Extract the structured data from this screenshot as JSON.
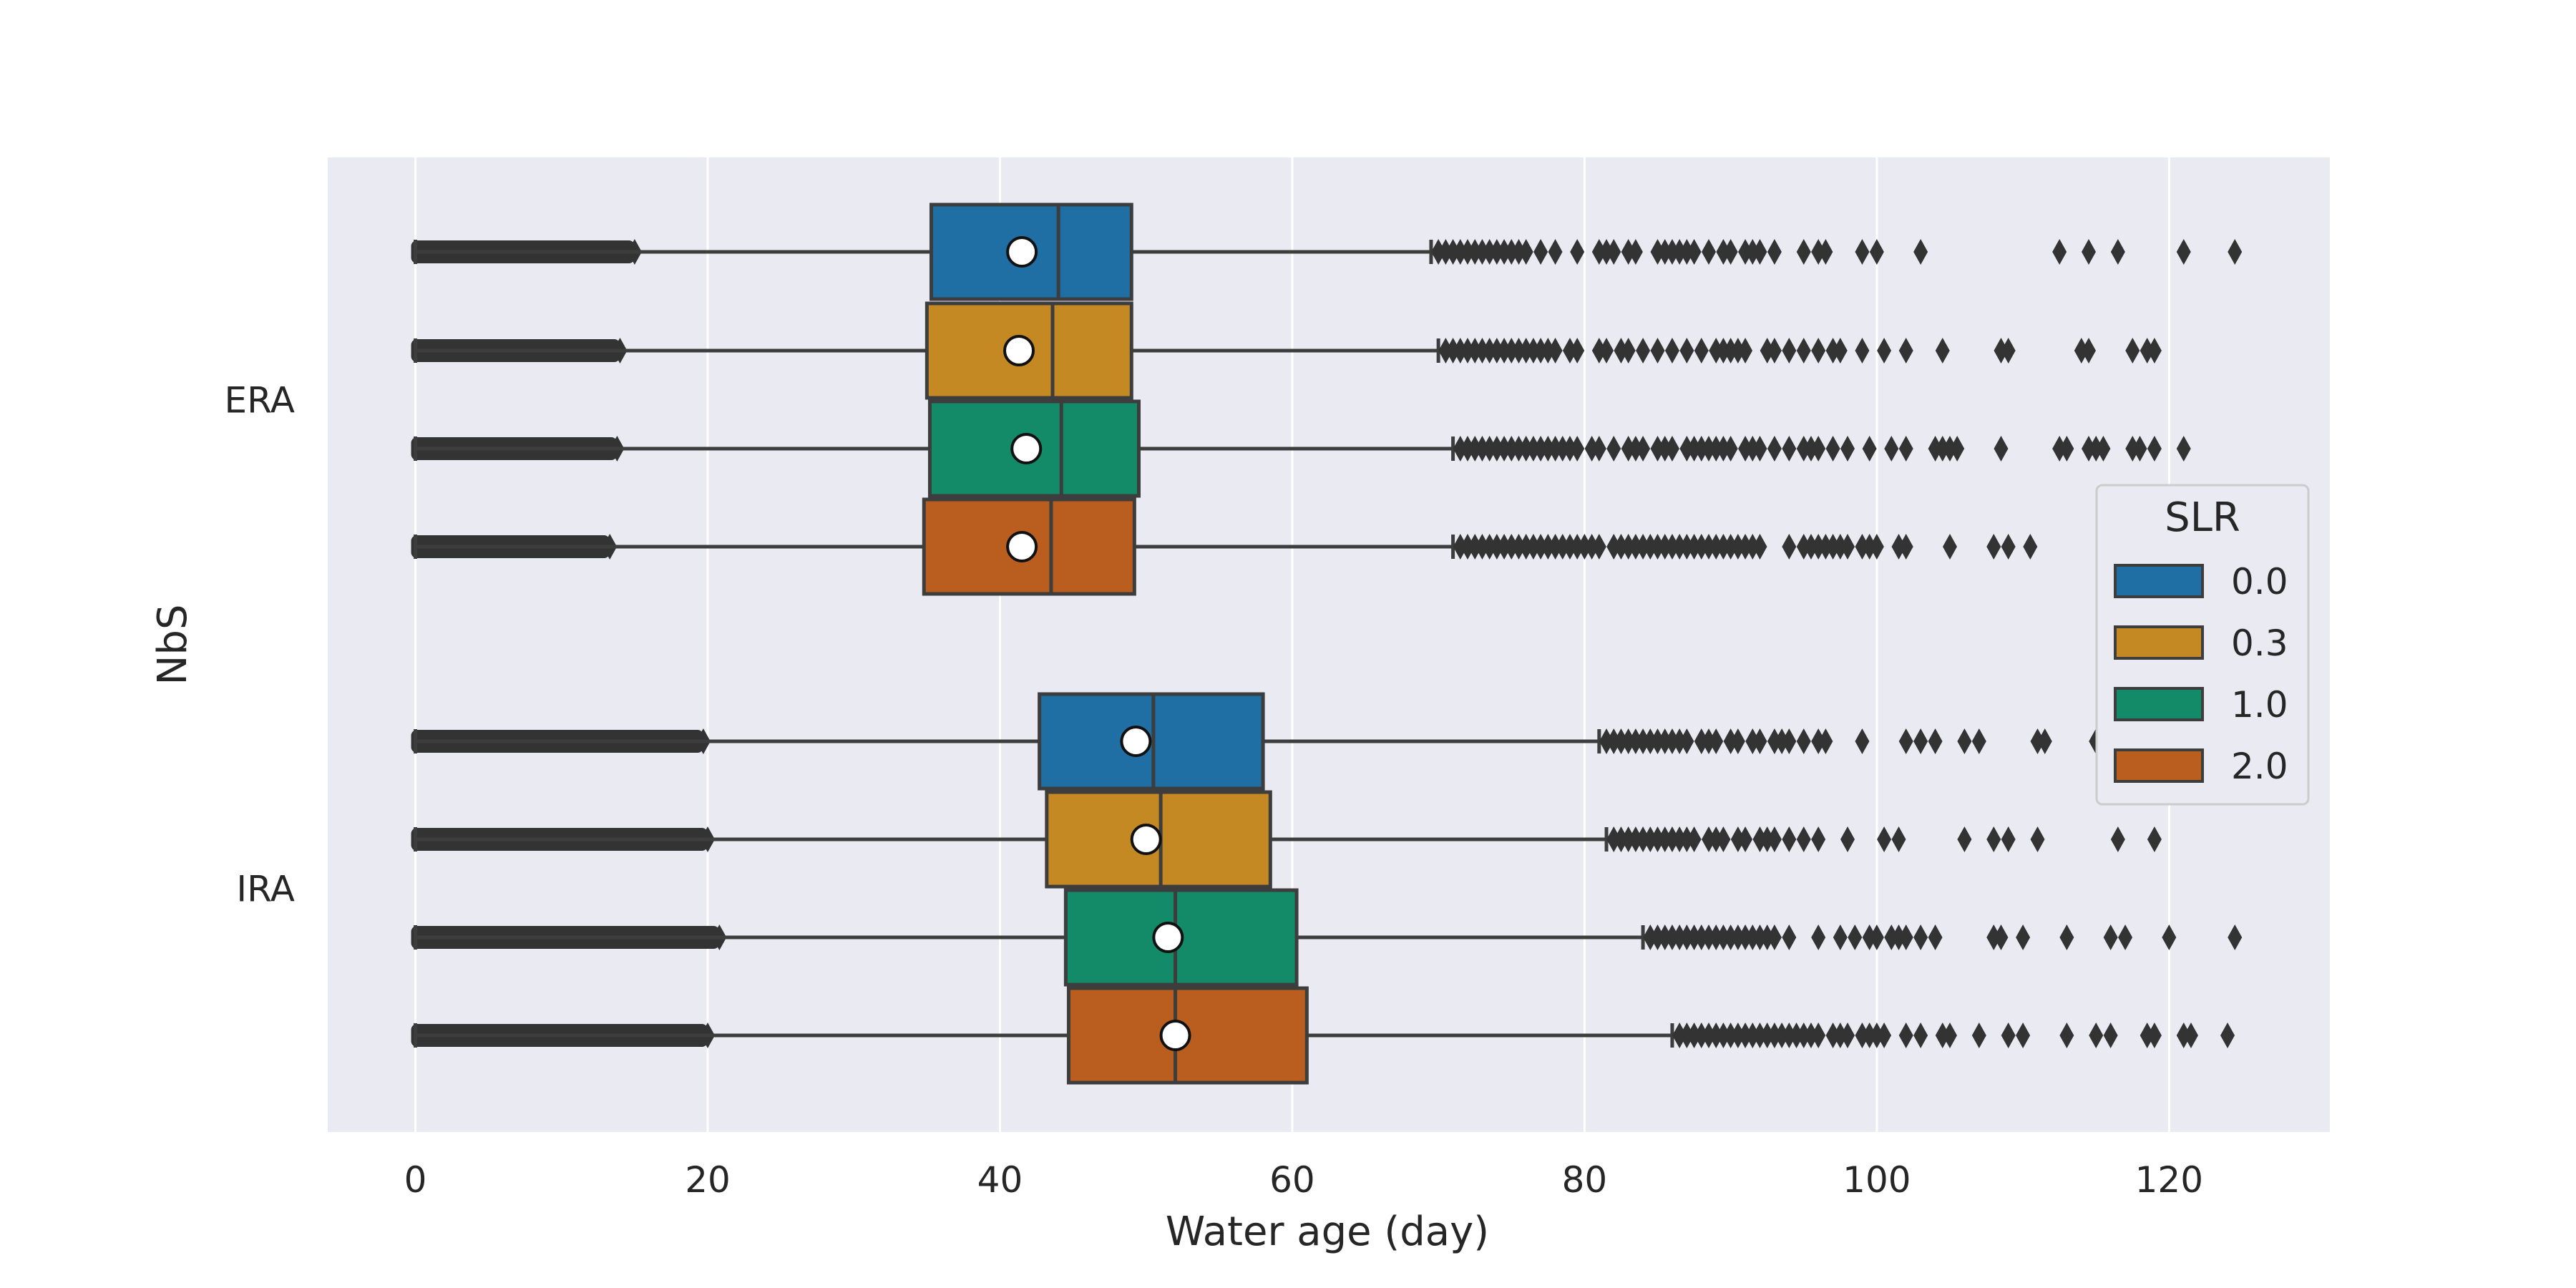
{
  "chart_data": {
    "type": "boxplot",
    "orientation": "horizontal",
    "title": "",
    "xlabel": "Water age (day)",
    "ylabel": "NbS",
    "xlim": [
      -6,
      131
    ],
    "xticks": [
      0,
      20,
      40,
      60,
      80,
      100,
      120
    ],
    "categories": [
      "ERA",
      "IRA"
    ],
    "grid": true,
    "legend": {
      "title": "SLR",
      "placement": "right",
      "entries": [
        "0.0",
        "0.3",
        "1.0",
        "2.0"
      ]
    },
    "colors": {
      "0.0": "#1f6fa5",
      "0.3": "#c48922",
      "1.0": "#138a68",
      "2.0": "#b95e1e"
    },
    "series": [
      {
        "name": "0.0",
        "boxes": [
          {
            "category": "ERA",
            "whisker_low": 0,
            "q1": 35.3,
            "median": 44,
            "q3": 49,
            "whisker_high": 69.5,
            "mean": 41.5,
            "flier_dense_range": [
              0,
              15
            ],
            "outliers": [
              70,
              70.5,
              71,
              71.5,
              72,
              72.5,
              73,
              73.5,
              74,
              74.5,
              75,
              75.5,
              76,
              77,
              78,
              79.5,
              81,
              81.5,
              82,
              83,
              83.5,
              85,
              85.5,
              86,
              86.5,
              87,
              87.5,
              88.5,
              89.5,
              90,
              91,
              91.5,
              92,
              93,
              95,
              96,
              96.5,
              99,
              100,
              103,
              112.5,
              114.5,
              116.5,
              121,
              124.5
            ]
          },
          {
            "category": "IRA",
            "whisker_low": 0,
            "q1": 42.7,
            "median": 50.5,
            "q3": 58,
            "whisker_high": 81,
            "mean": 49.3,
            "flier_dense_range": [
              0,
              19.7
            ],
            "outliers": [
              81.5,
              82,
              82.5,
              83,
              83.5,
              84,
              84.5,
              85,
              85.5,
              86,
              86.5,
              87,
              88,
              88.5,
              89,
              90,
              90.5,
              91.5,
              92,
              93,
              93.5,
              94,
              95,
              96,
              96.5,
              99,
              102,
              103,
              104,
              106,
              107,
              111,
              111.5,
              115,
              117.5,
              122,
              123.5
            ]
          }
        ]
      },
      {
        "name": "0.3",
        "boxes": [
          {
            "category": "ERA",
            "whisker_low": 0,
            "q1": 35,
            "median": 43.6,
            "q3": 49,
            "whisker_high": 70,
            "mean": 41.3,
            "flier_dense_range": [
              0,
              14
            ],
            "outliers": [
              70.5,
              71,
              71.5,
              72,
              72.5,
              73,
              73.5,
              74,
              74.5,
              75,
              75.5,
              76,
              76.5,
              77,
              77.5,
              78,
              79,
              79.5,
              81,
              81.5,
              82.5,
              83,
              84,
              85,
              86,
              87,
              88,
              89,
              89.5,
              90,
              90.5,
              91,
              92.5,
              93,
              94,
              95,
              96,
              97,
              97.5,
              99,
              100.5,
              102,
              104.5,
              108.5,
              109,
              114,
              114.5,
              117.5,
              118.5,
              119
            ]
          },
          {
            "category": "IRA",
            "whisker_low": 0,
            "q1": 43.2,
            "median": 51,
            "q3": 58.5,
            "whisker_high": 81.5,
            "mean": 50,
            "flier_dense_range": [
              0,
              20
            ],
            "outliers": [
              82,
              82.5,
              83,
              83.5,
              84,
              84.5,
              85,
              85.5,
              86,
              86.5,
              87,
              87.5,
              88.5,
              89,
              89.5,
              90.5,
              91,
              92,
              92.5,
              93,
              94,
              95,
              96,
              98,
              100.5,
              101.5,
              106,
              108,
              109,
              111,
              116.5,
              119
            ]
          }
        ]
      },
      {
        "name": "1.0",
        "boxes": [
          {
            "category": "ERA",
            "whisker_low": 0,
            "q1": 35.2,
            "median": 44.2,
            "q3": 49.5,
            "whisker_high": 71,
            "mean": 41.8,
            "flier_dense_range": [
              0,
              13.8
            ],
            "outliers": [
              71.5,
              72,
              72.5,
              73,
              73.5,
              74,
              74.5,
              75,
              75.5,
              76,
              76.5,
              77,
              77.5,
              78,
              78.5,
              79,
              79.5,
              80.5,
              81,
              82,
              83,
              83.5,
              84,
              85,
              85.5,
              86,
              87,
              87.5,
              88,
              88.5,
              89,
              89.5,
              90,
              91,
              91.5,
              92,
              93,
              94,
              95,
              95.5,
              96,
              97,
              98,
              99.5,
              101,
              102,
              104,
              104.5,
              105,
              105.5,
              108.5,
              112.5,
              113,
              114.5,
              115,
              115.5,
              117.5,
              118,
              119,
              121
            ]
          },
          {
            "category": "IRA",
            "whisker_low": 0,
            "q1": 44.5,
            "median": 52,
            "q3": 60.3,
            "whisker_high": 84,
            "mean": 51.5,
            "flier_dense_range": [
              0,
              20.8
            ],
            "outliers": [
              84.5,
              85,
              85.5,
              86,
              86.5,
              87,
              87.5,
              88,
              88.5,
              89,
              89.5,
              90,
              90.5,
              91,
              91.5,
              92,
              92.5,
              93,
              94,
              96,
              97.5,
              98.5,
              99.5,
              100,
              101,
              101.5,
              102,
              103,
              104,
              108,
              108.5,
              110,
              113,
              116,
              117,
              120,
              124.5
            ]
          }
        ]
      },
      {
        "name": "2.0",
        "boxes": [
          {
            "category": "ERA",
            "whisker_low": 0,
            "q1": 34.8,
            "median": 43.5,
            "q3": 49.2,
            "whisker_high": 71,
            "mean": 41.5,
            "flier_dense_range": [
              0,
              13.3
            ],
            "outliers": [
              71.5,
              72,
              72.5,
              73,
              73.5,
              74,
              74.5,
              75,
              75.5,
              76,
              76.5,
              77,
              77.5,
              78,
              78.5,
              79,
              79.5,
              80,
              80.5,
              81,
              82,
              82.5,
              83,
              83.5,
              84,
              84.5,
              85,
              85.5,
              86,
              86.5,
              87,
              87.5,
              88,
              88.5,
              89,
              89.5,
              90,
              90.5,
              91,
              91.5,
              92,
              94,
              95,
              95.5,
              96,
              96.5,
              97,
              97.5,
              98,
              99,
              99.5,
              100,
              101.5,
              102,
              105,
              108,
              109,
              110.5,
              116.5,
              117,
              117.5,
              118,
              119,
              121,
              121.5,
              124
            ]
          },
          {
            "category": "IRA",
            "whisker_low": 0,
            "q1": 44.7,
            "median": 52,
            "q3": 61,
            "whisker_high": 86,
            "mean": 52,
            "flier_dense_range": [
              0,
              20
            ],
            "outliers": [
              86.5,
              87,
              87.5,
              88,
              88.5,
              89,
              89.5,
              90,
              90.5,
              91,
              91.5,
              92,
              92.5,
              93,
              93.5,
              94,
              94.5,
              95,
              95.5,
              96,
              97,
              97.5,
              98,
              99,
              99.5,
              100,
              100.5,
              102,
              103,
              104.5,
              105,
              107,
              109,
              110,
              113,
              115,
              116,
              118.5,
              119,
              121,
              121.5,
              124
            ]
          }
        ]
      }
    ]
  }
}
